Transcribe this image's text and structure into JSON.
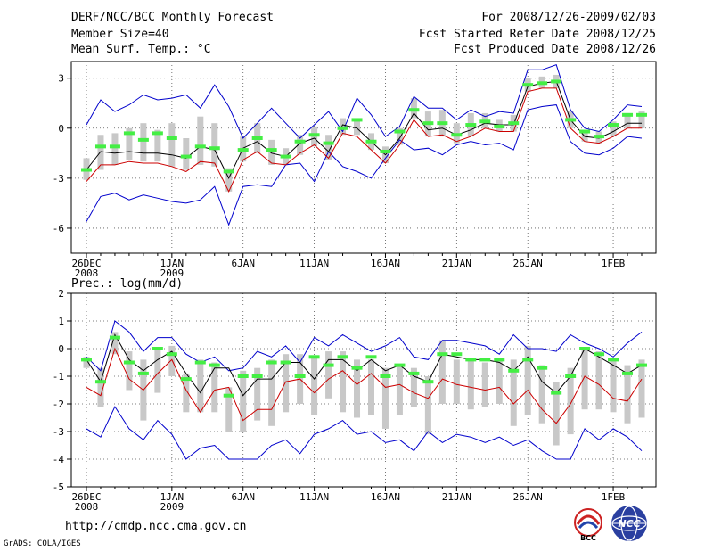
{
  "header": {
    "title": "DERF/NCC/BCC Monthly Forecast",
    "member_size": "Member Size=40",
    "variable": "Mean Surf. Temp.: °C",
    "period": "For 2008/12/26-2009/02/03",
    "start_date": "Fcst Started Refer Date 2008/12/25",
    "produced_date": "Fcst Produced Date 2008/12/26"
  },
  "footer": {
    "url": "http://cmdp.ncc.cma.gov.cn",
    "credit": "GrADS: COLA/IGES",
    "logo_bcc": "BCC",
    "logo_ncc": "NCC"
  },
  "colors": {
    "envelope": "#0000cc",
    "mean": "#000000",
    "lower": "#cc0000",
    "box": "#c8c8c8",
    "marker": "#44ee44"
  },
  "chart_data": [
    {
      "type": "line",
      "title": "Mean Surf. Temp.: °C",
      "xlabel": "",
      "ylabel": "°C",
      "ylim": [
        -7.5,
        4.0
      ],
      "yticks": [
        -6,
        -3,
        0,
        3
      ],
      "x": [
        0,
        1,
        2,
        3,
        4,
        5,
        6,
        7,
        8,
        9,
        10,
        11,
        12,
        13,
        14,
        15,
        16,
        17,
        18,
        19,
        20,
        21,
        22,
        23,
        24,
        25,
        26,
        27,
        28,
        29,
        30,
        31,
        32,
        33,
        34,
        35,
        36,
        37,
        38,
        39
      ],
      "xticks": [
        {
          "x": 0,
          "label": "26DEC",
          "label2": "2008"
        },
        {
          "x": 6,
          "label": "1JAN",
          "label2": "2009"
        },
        {
          "x": 11,
          "label": "6JAN",
          "label2": ""
        },
        {
          "x": 16,
          "label": "11JAN",
          "label2": ""
        },
        {
          "x": 21,
          "label": "16JAN",
          "label2": ""
        },
        {
          "x": 26,
          "label": "21JAN",
          "label2": ""
        },
        {
          "x": 31,
          "label": "26JAN",
          "label2": ""
        },
        {
          "x": 37,
          "label": "1FEB",
          "label2": ""
        }
      ],
      "series": [
        {
          "name": "max",
          "color": "envelope",
          "values": [
            0.2,
            1.7,
            1.0,
            1.4,
            2.0,
            1.7,
            1.8,
            2.0,
            1.2,
            2.6,
            1.3,
            -0.6,
            0.3,
            1.2,
            0.3,
            -0.6,
            0.2,
            1.0,
            -0.2,
            1.8,
            0.8,
            -0.5,
            0.1,
            1.9,
            1.2,
            1.2,
            0.5,
            1.1,
            0.7,
            1.0,
            0.9,
            3.5,
            3.5,
            3.8,
            1.1,
            0.0,
            -0.2,
            0.5,
            1.4,
            1.3
          ]
        },
        {
          "name": "min",
          "color": "envelope",
          "values": [
            -5.6,
            -4.1,
            -3.9,
            -4.3,
            -4.0,
            -4.2,
            -4.4,
            -4.5,
            -4.3,
            -3.5,
            -5.8,
            -3.5,
            -3.4,
            -3.5,
            -2.2,
            -2.1,
            -3.2,
            -1.4,
            -2.3,
            -2.6,
            -3.0,
            -1.8,
            -0.7,
            -1.3,
            -1.2,
            -1.6,
            -1.0,
            -0.8,
            -1.0,
            -0.9,
            -1.3,
            1.1,
            1.3,
            1.4,
            -0.8,
            -1.5,
            -1.6,
            -1.2,
            -0.5,
            -0.6
          ]
        },
        {
          "name": "mean",
          "color": "mean",
          "values": [
            -2.5,
            -1.4,
            -1.5,
            -1.4,
            -1.5,
            -1.5,
            -1.6,
            -1.8,
            -1.1,
            -1.3,
            -3.0,
            -1.2,
            -0.8,
            -1.5,
            -1.7,
            -0.9,
            -0.6,
            -1.4,
            0.2,
            0.0,
            -0.8,
            -1.6,
            -0.6,
            0.9,
            -0.1,
            0.0,
            -0.4,
            -0.1,
            0.3,
            0.2,
            0.2,
            2.5,
            2.7,
            2.8,
            0.5,
            -0.5,
            -0.6,
            -0.2,
            0.3,
            0.3
          ]
        },
        {
          "name": "lower",
          "color": "lower",
          "values": [
            -3.2,
            -2.2,
            -2.2,
            -2.0,
            -2.1,
            -2.1,
            -2.3,
            -2.6,
            -2.0,
            -2.1,
            -3.8,
            -1.9,
            -1.4,
            -2.1,
            -2.2,
            -1.5,
            -1.0,
            -1.8,
            -0.3,
            -0.5,
            -1.3,
            -2.1,
            -1.0,
            0.5,
            -0.5,
            -0.4,
            -0.8,
            -0.5,
            0.0,
            -0.2,
            -0.2,
            2.2,
            2.4,
            2.4,
            0.0,
            -0.8,
            -0.9,
            -0.5,
            0.0,
            0.0
          ]
        }
      ],
      "boxes": [
        {
          "x": 0,
          "low": -3.1,
          "high": -1.8,
          "marker": -2.5
        },
        {
          "x": 1,
          "low": -2.5,
          "high": -0.4,
          "marker": -1.1
        },
        {
          "x": 2,
          "low": -2.2,
          "high": -0.3,
          "marker": -1.1
        },
        {
          "x": 3,
          "low": -1.9,
          "high": 0.0,
          "marker": -0.3
        },
        {
          "x": 4,
          "low": -2.0,
          "high": 0.3,
          "marker": -0.7
        },
        {
          "x": 5,
          "low": -2.0,
          "high": -0.1,
          "marker": -0.3
        },
        {
          "x": 6,
          "low": -2.3,
          "high": 0.3,
          "marker": -0.6
        },
        {
          "x": 7,
          "low": -2.5,
          "high": -0.6,
          "marker": -1.7
        },
        {
          "x": 8,
          "low": -2.2,
          "high": 0.7,
          "marker": -1.1
        },
        {
          "x": 9,
          "low": -2.3,
          "high": 0.3,
          "marker": -1.2
        },
        {
          "x": 10,
          "low": -3.8,
          "high": -2.4,
          "marker": -2.6
        },
        {
          "x": 11,
          "low": -2.0,
          "high": -0.5,
          "marker": -1.3
        },
        {
          "x": 12,
          "low": -1.5,
          "high": 0.3,
          "marker": -0.6
        },
        {
          "x": 13,
          "low": -2.2,
          "high": -0.7,
          "marker": -1.3
        },
        {
          "x": 14,
          "low": -2.2,
          "high": -1.2,
          "marker": -1.7
        },
        {
          "x": 15,
          "low": -1.6,
          "high": -0.4,
          "marker": -0.8
        },
        {
          "x": 16,
          "low": -1.1,
          "high": 0.1,
          "marker": -0.4
        },
        {
          "x": 17,
          "low": -1.9,
          "high": -0.4,
          "marker": -0.9
        },
        {
          "x": 18,
          "low": -0.4,
          "high": 0.6,
          "marker": 0.0
        },
        {
          "x": 19,
          "low": -0.4,
          "high": 0.5,
          "marker": 0.5
        },
        {
          "x": 20,
          "low": -1.3,
          "high": -0.3,
          "marker": -0.8
        },
        {
          "x": 21,
          "low": -2.1,
          "high": -1.1,
          "marker": -1.4
        },
        {
          "x": 22,
          "low": -1.0,
          "high": 0.0,
          "marker": -0.2
        },
        {
          "x": 23,
          "low": 0.6,
          "high": 1.8,
          "marker": 1.1
        },
        {
          "x": 24,
          "low": -0.5,
          "high": 1.0,
          "marker": 0.3
        },
        {
          "x": 25,
          "low": -0.5,
          "high": 1.1,
          "marker": 0.3
        },
        {
          "x": 26,
          "low": -0.9,
          "high": 0.3,
          "marker": -0.4
        },
        {
          "x": 27,
          "low": -0.5,
          "high": 0.9,
          "marker": 0.2
        },
        {
          "x": 28,
          "low": 0.0,
          "high": 0.9,
          "marker": 0.4
        },
        {
          "x": 29,
          "low": -0.2,
          "high": 0.5,
          "marker": 0.1
        },
        {
          "x": 30,
          "low": -0.2,
          "high": 0.8,
          "marker": 0.3
        },
        {
          "x": 31,
          "low": 2.2,
          "high": 3.0,
          "marker": 2.6
        },
        {
          "x": 32,
          "low": 2.4,
          "high": 3.1,
          "marker": 2.7
        },
        {
          "x": 33,
          "low": 2.4,
          "high": 3.2,
          "marker": 2.8
        },
        {
          "x": 34,
          "low": 0.0,
          "high": 1.0,
          "marker": 0.5
        },
        {
          "x": 35,
          "low": -0.8,
          "high": -0.1,
          "marker": -0.2
        },
        {
          "x": 36,
          "low": -0.9,
          "high": -0.2,
          "marker": -0.5
        },
        {
          "x": 37,
          "low": -0.5,
          "high": 0.4,
          "marker": 0.2
        },
        {
          "x": 38,
          "low": 0.0,
          "high": 0.9,
          "marker": 0.8
        },
        {
          "x": 39,
          "low": 0.0,
          "high": 1.0,
          "marker": 0.8
        }
      ]
    },
    {
      "type": "line",
      "title": "Prec.: log(mm/d)",
      "xlabel": "",
      "ylabel": "log(mm/d)",
      "ylim": [
        -5,
        2
      ],
      "yticks": [
        -5,
        -4,
        -3,
        -2,
        -1,
        0,
        1,
        2
      ],
      "x": [
        0,
        1,
        2,
        3,
        4,
        5,
        6,
        7,
        8,
        9,
        10,
        11,
        12,
        13,
        14,
        15,
        16,
        17,
        18,
        19,
        20,
        21,
        22,
        23,
        24,
        25,
        26,
        27,
        28,
        29,
        30,
        31,
        32,
        33,
        34,
        35,
        36,
        37,
        38,
        39
      ],
      "xticks": [
        {
          "x": 0,
          "label": "26DEC",
          "label2": "2008"
        },
        {
          "x": 6,
          "label": "1JAN",
          "label2": "2009"
        },
        {
          "x": 11,
          "label": "6JAN",
          "label2": ""
        },
        {
          "x": 16,
          "label": "11JAN",
          "label2": ""
        },
        {
          "x": 21,
          "label": "16JAN",
          "label2": ""
        },
        {
          "x": 26,
          "label": "21JAN",
          "label2": ""
        },
        {
          "x": 31,
          "label": "26JAN",
          "label2": ""
        },
        {
          "x": 37,
          "label": "1FEB",
          "label2": ""
        }
      ],
      "series": [
        {
          "name": "max",
          "color": "envelope",
          "values": [
            -0.3,
            -0.8,
            1.0,
            0.6,
            -0.1,
            0.4,
            0.4,
            -0.2,
            -0.5,
            -0.3,
            -0.8,
            -0.7,
            -0.1,
            -0.3,
            0.1,
            -0.5,
            0.4,
            0.1,
            0.5,
            0.2,
            -0.1,
            0.1,
            0.4,
            -0.3,
            -0.4,
            0.3,
            0.3,
            0.2,
            0.1,
            -0.2,
            0.5,
            0.0,
            0.0,
            -0.1,
            0.5,
            0.2,
            0.0,
            -0.3,
            0.2,
            0.6
          ]
        },
        {
          "name": "min",
          "color": "envelope",
          "values": [
            -2.9,
            -3.2,
            -2.1,
            -2.9,
            -3.3,
            -2.6,
            -3.1,
            -4.0,
            -3.6,
            -3.5,
            -4.0,
            -4.0,
            -4.0,
            -3.5,
            -3.3,
            -3.8,
            -3.1,
            -2.9,
            -2.6,
            -3.1,
            -3.0,
            -3.4,
            -3.3,
            -3.7,
            -3.0,
            -3.4,
            -3.1,
            -3.2,
            -3.4,
            -3.2,
            -3.5,
            -3.3,
            -3.7,
            -4.0,
            -4.0,
            -2.9,
            -3.3,
            -2.9,
            -3.2,
            -3.7
          ]
        },
        {
          "name": "mean",
          "color": "mean",
          "values": [
            -0.4,
            -1.2,
            0.5,
            -0.4,
            -0.8,
            -0.4,
            -0.1,
            -0.9,
            -1.6,
            -0.7,
            -0.7,
            -1.7,
            -1.1,
            -1.1,
            -0.5,
            -0.5,
            -1.1,
            -0.4,
            -0.4,
            -0.8,
            -0.4,
            -0.8,
            -0.6,
            -1.0,
            -1.2,
            -0.2,
            -0.3,
            -0.4,
            -0.4,
            -0.5,
            -0.8,
            -0.3,
            -1.2,
            -1.6,
            -1.0,
            0.0,
            -0.3,
            -0.6,
            -0.9,
            -0.6
          ]
        },
        {
          "name": "lower",
          "color": "lower",
          "values": [
            -1.4,
            -1.7,
            0.0,
            -1.1,
            -1.5,
            -0.9,
            -0.4,
            -1.5,
            -2.3,
            -1.5,
            -1.4,
            -2.6,
            -2.2,
            -2.2,
            -1.2,
            -1.1,
            -1.6,
            -1.1,
            -0.8,
            -1.3,
            -0.9,
            -1.4,
            -1.3,
            -1.6,
            -1.8,
            -1.1,
            -1.3,
            -1.4,
            -1.5,
            -1.4,
            -2.0,
            -1.5,
            -2.2,
            -2.7,
            -2.0,
            -1.0,
            -1.3,
            -1.8,
            -1.9,
            -1.1
          ]
        }
      ],
      "boxes": [
        {
          "x": 0,
          "low": -0.7,
          "high": -0.3,
          "marker": -0.4
        },
        {
          "x": 1,
          "low": -2.1,
          "high": -0.7,
          "marker": -1.2
        },
        {
          "x": 2,
          "low": -0.2,
          "high": 0.6,
          "marker": 0.4
        },
        {
          "x": 3,
          "low": -1.5,
          "high": -0.1,
          "marker": -0.5
        },
        {
          "x": 4,
          "low": -2.6,
          "high": -0.4,
          "marker": -0.9
        },
        {
          "x": 5,
          "low": -1.6,
          "high": 0.0,
          "marker": 0.0
        },
        {
          "x": 6,
          "low": -1.0,
          "high": 0.1,
          "marker": -0.2
        },
        {
          "x": 7,
          "low": -2.3,
          "high": -0.9,
          "marker": -1.1
        },
        {
          "x": 8,
          "low": -2.3,
          "high": -0.4,
          "marker": -0.5
        },
        {
          "x": 9,
          "low": -2.3,
          "high": -0.5,
          "marker": -0.6
        },
        {
          "x": 10,
          "low": -3.0,
          "high": -1.4,
          "marker": -1.7
        },
        {
          "x": 11,
          "low": -3.0,
          "high": -0.8,
          "marker": -1.0
        },
        {
          "x": 12,
          "low": -2.6,
          "high": -0.7,
          "marker": -1.0
        },
        {
          "x": 13,
          "low": -2.8,
          "high": -0.4,
          "marker": -0.5
        },
        {
          "x": 14,
          "low": -2.3,
          "high": -0.2,
          "marker": -0.5
        },
        {
          "x": 15,
          "low": -2.0,
          "high": -0.2,
          "marker": -1.0
        },
        {
          "x": 16,
          "low": -2.4,
          "high": -0.3,
          "marker": -0.3
        },
        {
          "x": 17,
          "low": -1.8,
          "high": -0.1,
          "marker": -0.6
        },
        {
          "x": 18,
          "low": -2.3,
          "high": -0.1,
          "marker": -0.3
        },
        {
          "x": 19,
          "low": -2.5,
          "high": -0.4,
          "marker": -0.7
        },
        {
          "x": 20,
          "low": -2.4,
          "high": -0.4,
          "marker": -0.3
        },
        {
          "x": 21,
          "low": -2.9,
          "high": -0.7,
          "marker": -1.0
        },
        {
          "x": 22,
          "low": -2.4,
          "high": -0.6,
          "marker": -0.6
        },
        {
          "x": 23,
          "low": -2.1,
          "high": -0.7,
          "marker": -0.9
        },
        {
          "x": 24,
          "low": -3.1,
          "high": -1.0,
          "marker": -1.2
        },
        {
          "x": 25,
          "low": -2.0,
          "high": 0.3,
          "marker": -0.2
        },
        {
          "x": 26,
          "low": -2.0,
          "high": -0.4,
          "marker": -0.2
        },
        {
          "x": 27,
          "low": -2.2,
          "high": -0.4,
          "marker": -0.4
        },
        {
          "x": 28,
          "low": -2.1,
          "high": -0.5,
          "marker": -0.4
        },
        {
          "x": 29,
          "low": -2.0,
          "high": -0.4,
          "marker": -0.4
        },
        {
          "x": 30,
          "low": -2.8,
          "high": -0.4,
          "marker": -0.8
        },
        {
          "x": 31,
          "low": -2.4,
          "high": 0.1,
          "marker": -0.4
        },
        {
          "x": 32,
          "low": -2.7,
          "high": -0.6,
          "marker": -0.7
        },
        {
          "x": 33,
          "low": -3.5,
          "high": -1.2,
          "marker": -1.6
        },
        {
          "x": 34,
          "low": -3.1,
          "high": -0.7,
          "marker": -1.0
        },
        {
          "x": 35,
          "low": -2.2,
          "high": 0.0,
          "marker": 0.0
        },
        {
          "x": 36,
          "low": -2.2,
          "high": -0.1,
          "marker": -0.2
        },
        {
          "x": 37,
          "low": -2.3,
          "high": -0.4,
          "marker": -0.4
        },
        {
          "x": 38,
          "low": -2.7,
          "high": -0.6,
          "marker": -0.9
        },
        {
          "x": 39,
          "low": -2.5,
          "high": -0.4,
          "marker": -0.6
        }
      ]
    }
  ]
}
